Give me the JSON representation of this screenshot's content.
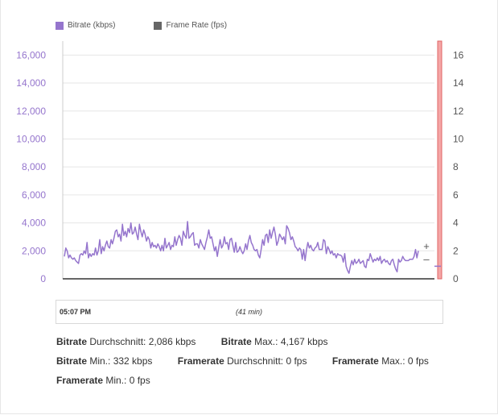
{
  "legend": {
    "bitrate_label": "Bitrate (kbps)",
    "framerate_label": "Frame Rate (fps)",
    "bitrate_color": "#9575cd",
    "framerate_color": "#666666"
  },
  "chart_data": {
    "type": "line",
    "y_left_ticks": [
      "0",
      "2,000",
      "4,000",
      "6,000",
      "8,000",
      "10,000",
      "12,000",
      "14,000",
      "16,000"
    ],
    "y_right_ticks": [
      "0",
      "2",
      "4",
      "6",
      "8",
      "10",
      "12",
      "14",
      "16"
    ],
    "ylim_left": [
      0,
      17000
    ],
    "ylim_right": [
      0,
      17
    ],
    "grid": true,
    "series": [
      {
        "name": "Bitrate (kbps)",
        "axis": "left",
        "color": "#9575cd",
        "values": [
          1600,
          2200,
          2000,
          1500,
          1700,
          1500,
          1400,
          1500,
          1300,
          1200,
          1100,
          1700,
          1800,
          1700,
          2000,
          1800,
          2600,
          1500,
          1800,
          1600,
          1800,
          1700,
          2200,
          1700,
          2000,
          2800,
          1800,
          2300,
          2000,
          2400,
          2700,
          2300,
          2200,
          2800,
          2500,
          2900,
          3400,
          3500,
          3000,
          3200,
          2700,
          3900,
          3100,
          3400,
          3000,
          3600,
          3300,
          4000,
          3200,
          3300,
          3700,
          3200,
          2800,
          3900,
          3400,
          3000,
          3500,
          3200,
          2700,
          3000,
          2800,
          2200,
          2600,
          2300,
          2400,
          2200,
          2500,
          2300,
          2000,
          2400,
          2000,
          2900,
          2200,
          2400,
          2600,
          2100,
          2400,
          2300,
          3000,
          2400,
          2800,
          3100,
          2900,
          2400,
          3400,
          3100,
          2900,
          4100,
          2900,
          3000,
          3200,
          3300,
          2400,
          2500,
          2500,
          2200,
          2800,
          2500,
          2300,
          2100,
          2600,
          3000,
          3500,
          2900,
          3000,
          2500,
          2000,
          2300,
          1600,
          2200,
          2800,
          2200,
          2400,
          3000,
          2500,
          2600,
          2100,
          2800,
          2900,
          2400,
          1900,
          2600,
          1900,
          2000,
          2300,
          2000,
          1800,
          2000,
          2500,
          2100,
          2700,
          3100,
          2600,
          2400,
          2100,
          2000,
          2100,
          1700,
          1500,
          2100,
          2800,
          2400,
          3100,
          3200,
          2600,
          3500,
          2900,
          3300,
          3700,
          3200,
          2400,
          2700,
          3200,
          3000,
          2800,
          3000,
          2500,
          3800,
          3600,
          3300,
          2800,
          3000,
          2700,
          2300,
          2200,
          2000,
          2200,
          2100,
          1400,
          2100,
          1300,
          2100,
          2600,
          2200,
          2400,
          2100,
          2000,
          2200,
          2300,
          2600,
          2100,
          2100,
          2100,
          2800,
          2700,
          1800,
          2300,
          2100,
          1800,
          2000,
          1700,
          1800,
          1500,
          1800,
          1700,
          1700,
          1600,
          1200,
          1800,
          900,
          600,
          400,
          900,
          1300,
          1000,
          1400,
          1100,
          1200,
          1400,
          1100,
          1200,
          1300,
          900,
          800,
          1400,
          1300,
          1800,
          1500,
          1200,
          1400,
          1300,
          1500,
          1300,
          1600,
          1100,
          1300,
          1400,
          1200,
          1300,
          1100,
          1000,
          1300,
          1400,
          1000,
          700,
          500,
          1400,
          1200,
          1300,
          1600,
          1400,
          1300,
          1300,
          1300,
          1400,
          1400,
          1400,
          1600,
          2100,
          1500,
          2000
        ]
      },
      {
        "name": "Frame Rate (fps)",
        "axis": "right",
        "color": "#666666",
        "values": [
          0,
          0
        ]
      }
    ]
  },
  "zoom": {
    "in": "+",
    "out": "–"
  },
  "timeline": {
    "start": "05:07 PM",
    "duration": "(41 min)"
  },
  "stats": {
    "row1": [
      {
        "key": "Bitrate",
        "label": " Durchschnitt: ",
        "value": "2,086 kbps"
      },
      {
        "key": "Bitrate",
        "label": " Max.: ",
        "value": "4,167 kbps"
      }
    ],
    "row2": [
      {
        "key": "Bitrate",
        "label": " Min.: ",
        "value": "332 kbps"
      },
      {
        "key": "Framerate",
        "label": " Durchschnitt: ",
        "value": "0 fps"
      },
      {
        "key": "Framerate",
        "label": " Max.: ",
        "value": "0 fps"
      }
    ],
    "row3": [
      {
        "key": "Framerate",
        "label": " Min.: ",
        "value": "0 fps"
      }
    ]
  }
}
